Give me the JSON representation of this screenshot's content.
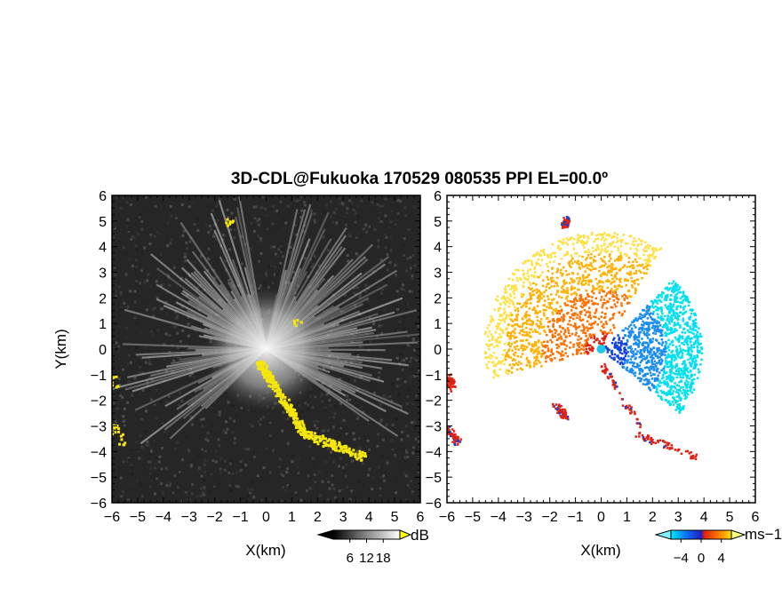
{
  "figure": {
    "title": "3D-CDL@Fukuoka 170529 080535 PPI EL=00.0º"
  },
  "chart_data": [
    {
      "type": "heatmap",
      "panel": "left",
      "quantity": "radar backscatter intensity (grayscale) with yellow echo mask",
      "xlabel": "X(km)",
      "ylabel": "Y(km)",
      "xlim": [
        -6,
        6
      ],
      "ylim": [
        -6,
        6
      ],
      "xticks": [
        "−6",
        "−5",
        "−4",
        "−3",
        "−2",
        "−1",
        "0",
        "1",
        "2",
        "3",
        "4",
        "5",
        "6"
      ],
      "yticks": [
        "6",
        "5",
        "4",
        "3",
        "2",
        "1",
        "0",
        "−1",
        "−2",
        "−3",
        "−4",
        "−5",
        "−6"
      ],
      "colorbar": {
        "unit": "dB",
        "ticks": [
          "6",
          "12",
          "18"
        ],
        "tick_values": [
          6,
          12,
          18
        ],
        "range": [
          0,
          24
        ]
      },
      "colors": {
        "background": "#262626",
        "highlight": "#f5e60a",
        "beam": "#c8c8c8"
      },
      "yellow_regions": [
        {
          "x": [
            -0.3,
            1.5
          ],
          "y": [
            -0.5,
            -3.3
          ]
        },
        {
          "x": [
            1.3,
            3.8
          ],
          "y": [
            -3.2,
            -4.2
          ]
        },
        {
          "x": [
            -6.0,
            -5.9
          ],
          "y": [
            -1.0,
            -1.5
          ]
        },
        {
          "x": [
            -6.0,
            -5.6
          ],
          "y": [
            -3.0,
            -3.6
          ]
        },
        {
          "x": [
            -1.5,
            -1.3
          ],
          "y": [
            4.8,
            5.1
          ]
        },
        {
          "x": [
            1.0,
            1.2
          ],
          "y": [
            1.0,
            1.2
          ]
        }
      ]
    },
    {
      "type": "heatmap",
      "panel": "right",
      "quantity": "Doppler radial velocity",
      "xlabel": "X(km)",
      "ylabel": "",
      "xlim": [
        -6,
        6
      ],
      "ylim": [
        -6,
        6
      ],
      "xticks": [
        "−6",
        "−5",
        "−4",
        "−3",
        "−2",
        "−1",
        "0",
        "1",
        "2",
        "3",
        "4",
        "5",
        "6"
      ],
      "colorbar": {
        "unit": "ms−1",
        "ticks": [
          "−4",
          "0",
          "4"
        ],
        "tick_values": [
          -4,
          0,
          4
        ],
        "range": [
          -6,
          6
        ]
      },
      "colors": {
        "negative_far": "#00e0f0",
        "negative": "#1040e0",
        "zero": "#2020c0",
        "positive": "#f03010",
        "positive_far": "#ffd000"
      },
      "approaching_sector": {
        "direction": "east",
        "velocity_range": [
          -5,
          -1
        ]
      },
      "receding_sector": {
        "direction": "west / north-west",
        "velocity_range": [
          1,
          5
        ]
      }
    }
  ]
}
